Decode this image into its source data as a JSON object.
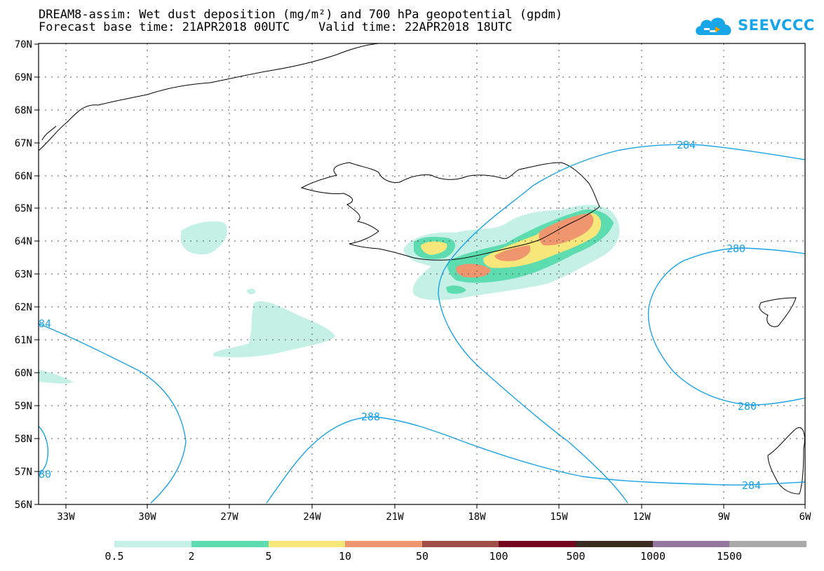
{
  "header": {
    "title_line1": "DREAM8-assim: Wet dust deposition (mg/m²) and 700 hPa geopotential (gpdm)",
    "title_line2": "Forecast base time: 21APR2018 00UTC    Valid time: 22APR2018 18UTC",
    "logo_text": "SEEVCCC"
  },
  "map": {
    "lat_labels": [
      "70N",
      "69N",
      "68N",
      "67N",
      "66N",
      "65N",
      "64N",
      "63N",
      "62N",
      "61N",
      "60N",
      "59N",
      "58N",
      "57N",
      "56N"
    ],
    "lon_labels": [
      "33W",
      "30W",
      "27W",
      "24W",
      "21W",
      "18W",
      "15W",
      "12W",
      "9W",
      "6W"
    ],
    "contour_labels": [
      "284",
      "280",
      "280",
      "284",
      "288",
      "84",
      "80"
    ],
    "contour_color": "#1aa3e6",
    "coastline_color": "#000000",
    "grid": true
  },
  "legend": {
    "colors": [
      "#c4f0e6",
      "#5ddcb0",
      "#f7e77a",
      "#f0966e",
      "#a04e48",
      "#750620",
      "#3a2a20",
      "#9478a0",
      "#aaaaaa"
    ],
    "labels": [
      "0.5",
      "2",
      "5",
      "10",
      "50",
      "100",
      "500",
      "1000",
      "1500"
    ]
  }
}
